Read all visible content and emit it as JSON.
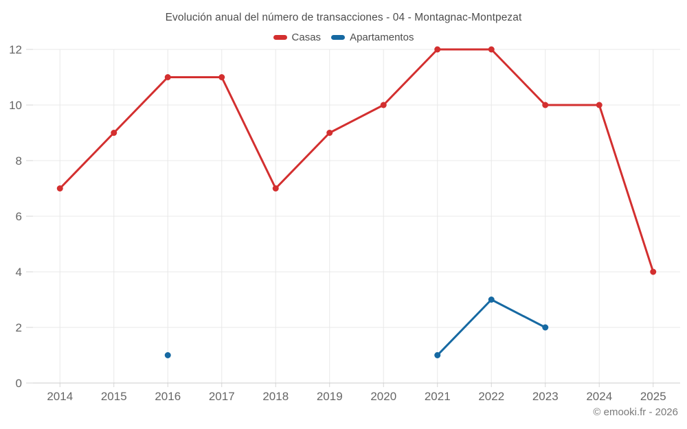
{
  "footer": "© emooki.fr - 2026",
  "colors": {
    "grid": "#e8e8e8",
    "axis_line": "#cccccc",
    "tick": "#d6d6d6",
    "tick_text": "#666666",
    "title_text": "#4d4d4d",
    "casas": "#d32f2f",
    "apartamentos": "#1669a2"
  },
  "chart_data": {
    "type": "line",
    "title": "Evolución anual del número de transacciones - 04 - Montagnac-Montpezat",
    "categories": [
      "2014",
      "2015",
      "2016",
      "2017",
      "2018",
      "2019",
      "2020",
      "2021",
      "2022",
      "2023",
      "2024",
      "2025"
    ],
    "series": [
      {
        "name": "Casas",
        "color": "#d32f2f",
        "values": [
          7,
          9,
          11,
          11,
          7,
          9,
          10,
          12,
          12,
          10,
          10,
          4
        ]
      },
      {
        "name": "Apartamentos",
        "color": "#1669a2",
        "values": [
          null,
          null,
          1,
          null,
          null,
          null,
          null,
          1,
          3,
          2,
          null,
          null
        ]
      }
    ],
    "xlabel": "",
    "ylabel": "",
    "ylim": [
      0,
      12
    ],
    "yticks": [
      0,
      2,
      4,
      6,
      8,
      10,
      12
    ],
    "grid": true,
    "legend_position": "top"
  }
}
